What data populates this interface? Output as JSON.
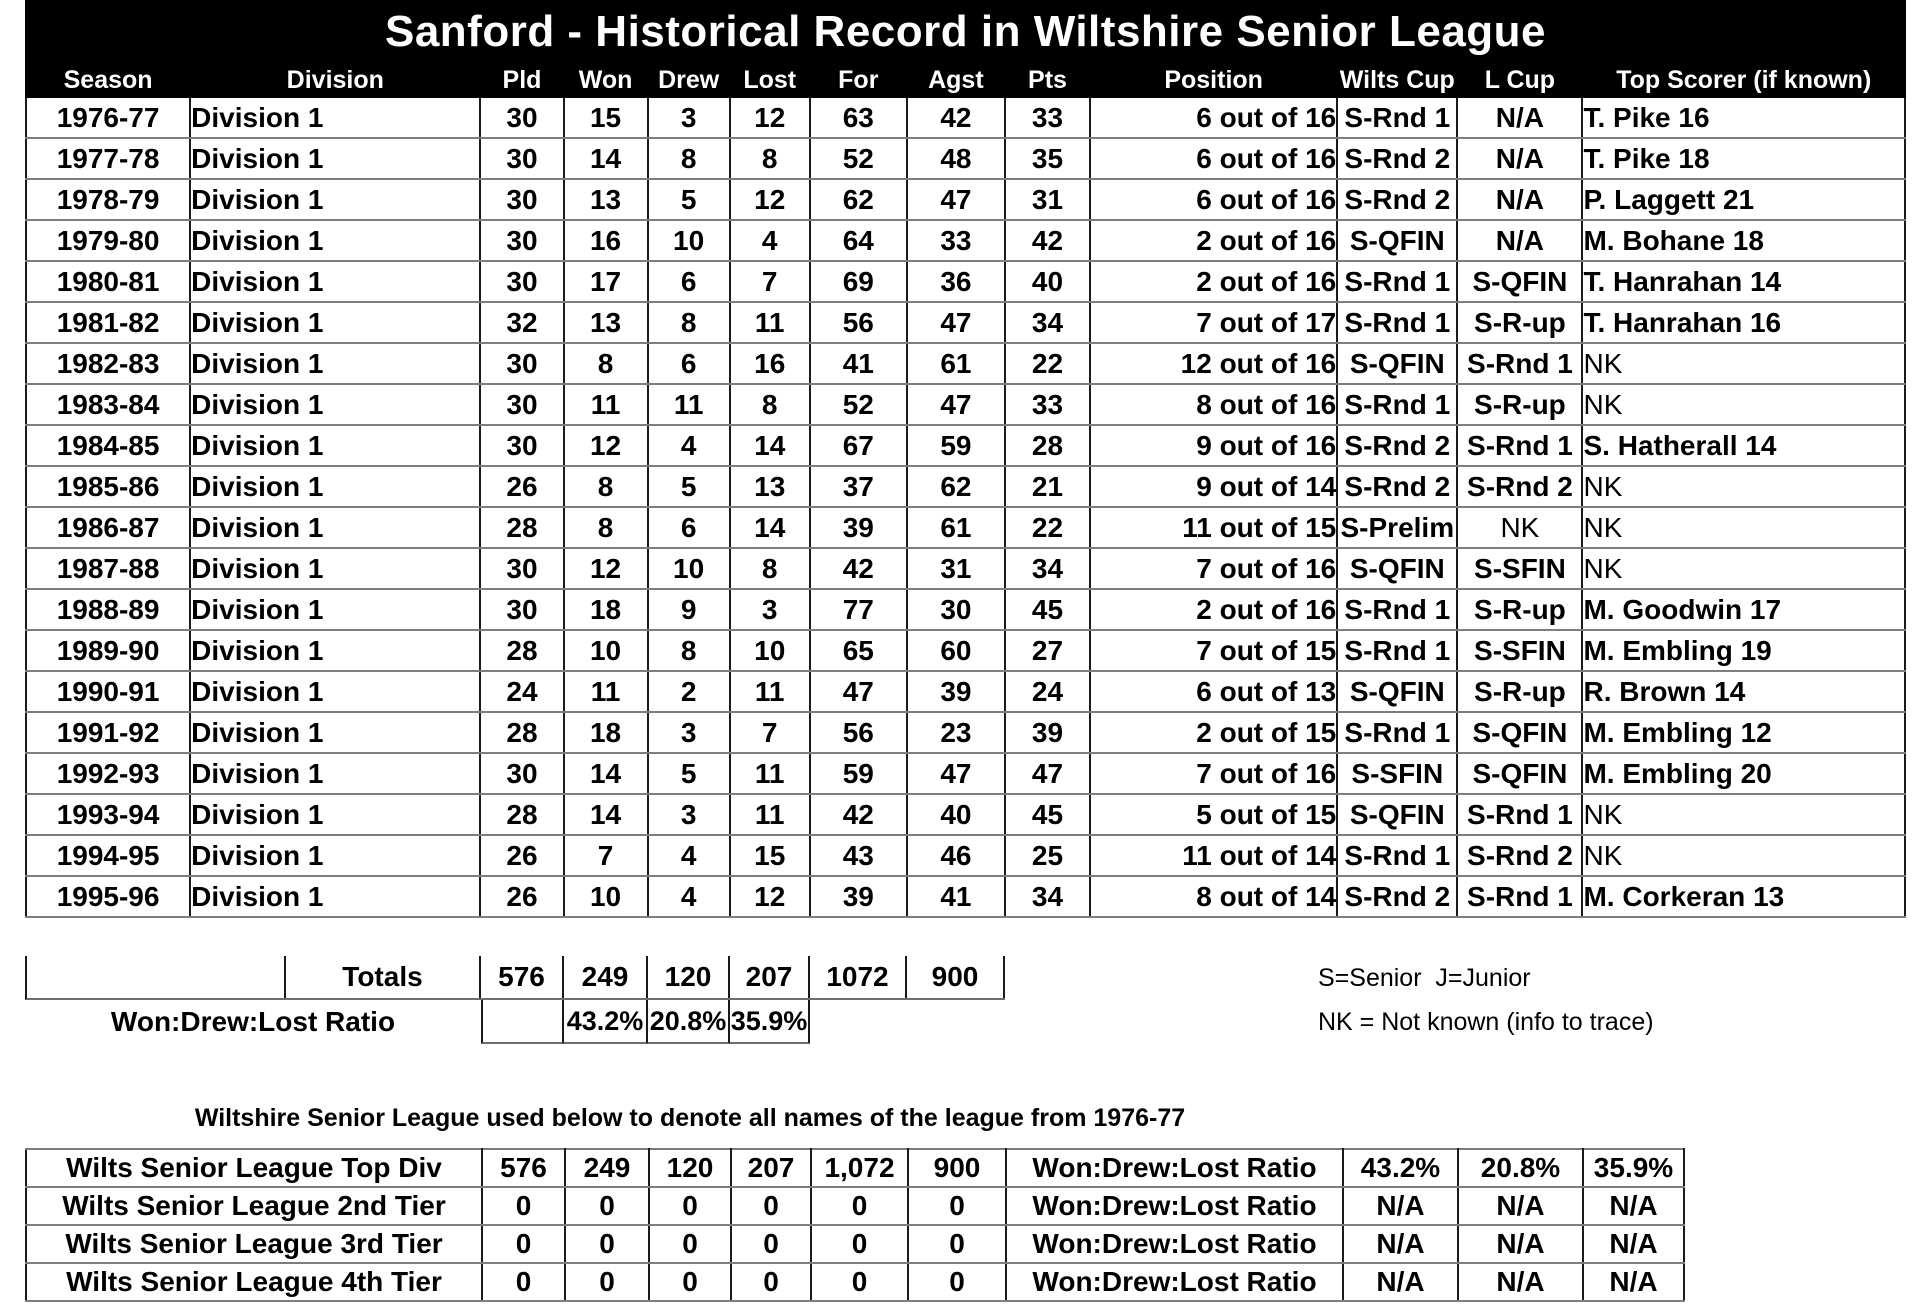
{
  "title": "Sanford - Historical Record in Wiltshire Senior League",
  "main_table": {
    "columns": [
      "Season",
      "Division",
      "Pld",
      "Won",
      "Drew",
      "Lost",
      "For",
      "Agst",
      "Pts",
      "Position",
      "Wilts Cup",
      "L Cup",
      "Top Scorer (if known)"
    ],
    "rows": [
      {
        "season": "1976-77",
        "division": "Division 1",
        "pld": "30",
        "won": "15",
        "drew": "3",
        "lost": "12",
        "for": "63",
        "agst": "42",
        "pts": "33",
        "position": "6 out of 16",
        "wilts_cup": "S-Rnd 1",
        "l_cup": "N/A",
        "top_scorer": "T. Pike 16",
        "l_cup_muted": false,
        "top_scorer_muted": false
      },
      {
        "season": "1977-78",
        "division": "Division 1",
        "pld": "30",
        "won": "14",
        "drew": "8",
        "lost": "8",
        "for": "52",
        "agst": "48",
        "pts": "35",
        "position": "6 out of 16",
        "wilts_cup": "S-Rnd 2",
        "l_cup": "N/A",
        "top_scorer": "T. Pike 18",
        "l_cup_muted": false,
        "top_scorer_muted": false
      },
      {
        "season": "1978-79",
        "division": "Division 1",
        "pld": "30",
        "won": "13",
        "drew": "5",
        "lost": "12",
        "for": "62",
        "agst": "47",
        "pts": "31",
        "position": "6 out of 16",
        "wilts_cup": "S-Rnd 2",
        "l_cup": "N/A",
        "top_scorer": "P. Laggett 21",
        "l_cup_muted": false,
        "top_scorer_muted": false
      },
      {
        "season": "1979-80",
        "division": "Division 1",
        "pld": "30",
        "won": "16",
        "drew": "10",
        "lost": "4",
        "for": "64",
        "agst": "33",
        "pts": "42",
        "position": "2 out of 16",
        "wilts_cup": "S-QFIN",
        "l_cup": "N/A",
        "top_scorer": "M. Bohane 18",
        "l_cup_muted": false,
        "top_scorer_muted": false
      },
      {
        "season": "1980-81",
        "division": "Division 1",
        "pld": "30",
        "won": "17",
        "drew": "6",
        "lost": "7",
        "for": "69",
        "agst": "36",
        "pts": "40",
        "position": "2 out of 16",
        "wilts_cup": "S-Rnd 1",
        "l_cup": "S-QFIN",
        "top_scorer": "T. Hanrahan 14",
        "l_cup_muted": false,
        "top_scorer_muted": false
      },
      {
        "season": "1981-82",
        "division": "Division 1",
        "pld": "32",
        "won": "13",
        "drew": "8",
        "lost": "11",
        "for": "56",
        "agst": "47",
        "pts": "34",
        "position": "7 out of 17",
        "wilts_cup": "S-Rnd 1",
        "l_cup": "S-R-up",
        "top_scorer": "T. Hanrahan 16",
        "l_cup_muted": false,
        "top_scorer_muted": false
      },
      {
        "season": "1982-83",
        "division": "Division 1",
        "pld": "30",
        "won": "8",
        "drew": "6",
        "lost": "16",
        "for": "41",
        "agst": "61",
        "pts": "22",
        "position": "12 out of 16",
        "wilts_cup": "S-QFIN",
        "l_cup": "S-Rnd 1",
        "top_scorer": "NK",
        "l_cup_muted": false,
        "top_scorer_muted": true
      },
      {
        "season": "1983-84",
        "division": "Division 1",
        "pld": "30",
        "won": "11",
        "drew": "11",
        "lost": "8",
        "for": "52",
        "agst": "47",
        "pts": "33",
        "position": "8 out of 16",
        "wilts_cup": "S-Rnd 1",
        "l_cup": "S-R-up",
        "top_scorer": "NK",
        "l_cup_muted": false,
        "top_scorer_muted": true
      },
      {
        "season": "1984-85",
        "division": "Division 1",
        "pld": "30",
        "won": "12",
        "drew": "4",
        "lost": "14",
        "for": "67",
        "agst": "59",
        "pts": "28",
        "position": "9 out of 16",
        "wilts_cup": "S-Rnd 2",
        "l_cup": "S-Rnd 1",
        "top_scorer": "S. Hatherall 14",
        "l_cup_muted": false,
        "top_scorer_muted": false
      },
      {
        "season": "1985-86",
        "division": "Division 1",
        "pld": "26",
        "won": "8",
        "drew": "5",
        "lost": "13",
        "for": "37",
        "agst": "62",
        "pts": "21",
        "position": "9 out of 14",
        "wilts_cup": "S-Rnd 2",
        "l_cup": "S-Rnd 2",
        "top_scorer": "NK",
        "l_cup_muted": false,
        "top_scorer_muted": true
      },
      {
        "season": "1986-87",
        "division": "Division 1",
        "pld": "28",
        "won": "8",
        "drew": "6",
        "lost": "14",
        "for": "39",
        "agst": "61",
        "pts": "22",
        "position": "11 out of 15",
        "wilts_cup": "S-Prelim",
        "l_cup": "NK",
        "top_scorer": "NK",
        "l_cup_muted": true,
        "top_scorer_muted": true
      },
      {
        "season": "1987-88",
        "division": "Division 1",
        "pld": "30",
        "won": "12",
        "drew": "10",
        "lost": "8",
        "for": "42",
        "agst": "31",
        "pts": "34",
        "position": "7 out of 16",
        "wilts_cup": "S-QFIN",
        "l_cup": "S-SFIN",
        "top_scorer": "NK",
        "l_cup_muted": false,
        "top_scorer_muted": true
      },
      {
        "season": "1988-89",
        "division": "Division 1",
        "pld": "30",
        "won": "18",
        "drew": "9",
        "lost": "3",
        "for": "77",
        "agst": "30",
        "pts": "45",
        "position": "2 out of 16",
        "wilts_cup": "S-Rnd 1",
        "l_cup": "S-R-up",
        "top_scorer": "M. Goodwin 17",
        "l_cup_muted": false,
        "top_scorer_muted": false
      },
      {
        "season": "1989-90",
        "division": "Division 1",
        "pld": "28",
        "won": "10",
        "drew": "8",
        "lost": "10",
        "for": "65",
        "agst": "60",
        "pts": "27",
        "position": "7 out of 15",
        "wilts_cup": "S-Rnd 1",
        "l_cup": "S-SFIN",
        "top_scorer": "M. Embling 19",
        "l_cup_muted": false,
        "top_scorer_muted": false
      },
      {
        "season": "1990-91",
        "division": "Division 1",
        "pld": "24",
        "won": "11",
        "drew": "2",
        "lost": "11",
        "for": "47",
        "agst": "39",
        "pts": "24",
        "position": "6 out of 13",
        "wilts_cup": "S-QFIN",
        "l_cup": "S-R-up",
        "top_scorer": "R. Brown 14",
        "l_cup_muted": false,
        "top_scorer_muted": false
      },
      {
        "season": "1991-92",
        "division": "Division 1",
        "pld": "28",
        "won": "18",
        "drew": "3",
        "lost": "7",
        "for": "56",
        "agst": "23",
        "pts": "39",
        "position": "2 out of 15",
        "wilts_cup": "S-Rnd 1",
        "l_cup": "S-QFIN",
        "top_scorer": "M. Embling 12",
        "l_cup_muted": false,
        "top_scorer_muted": false
      },
      {
        "season": "1992-93",
        "division": "Division 1",
        "pld": "30",
        "won": "14",
        "drew": "5",
        "lost": "11",
        "for": "59",
        "agst": "47",
        "pts": "47",
        "position": "7 out of 16",
        "wilts_cup": "S-SFIN",
        "l_cup": "S-QFIN",
        "top_scorer": "M. Embling 20",
        "l_cup_muted": false,
        "top_scorer_muted": false
      },
      {
        "season": "1993-94",
        "division": "Division 1",
        "pld": "28",
        "won": "14",
        "drew": "3",
        "lost": "11",
        "for": "42",
        "agst": "40",
        "pts": "45",
        "position": "5 out of 15",
        "wilts_cup": "S-QFIN",
        "l_cup": "S-Rnd 1",
        "top_scorer": "NK",
        "l_cup_muted": false,
        "top_scorer_muted": true
      },
      {
        "season": "1994-95",
        "division": "Division 1",
        "pld": "26",
        "won": "7",
        "drew": "4",
        "lost": "15",
        "for": "43",
        "agst": "46",
        "pts": "25",
        "position": "11 out of 14",
        "wilts_cup": "S-Rnd 1",
        "l_cup": "S-Rnd 2",
        "top_scorer": "NK",
        "l_cup_muted": false,
        "top_scorer_muted": true
      },
      {
        "season": "1995-96",
        "division": "Division 1",
        "pld": "26",
        "won": "10",
        "drew": "4",
        "lost": "12",
        "for": "39",
        "agst": "41",
        "pts": "34",
        "position": "8 out of 14",
        "wilts_cup": "S-Rnd 2",
        "l_cup": "S-Rnd 1",
        "top_scorer": "M. Corkeran 13",
        "l_cup_muted": false,
        "top_scorer_muted": false
      }
    ],
    "totals": {
      "label": "Totals",
      "pld": "576",
      "won": "249",
      "drew": "120",
      "lost": "207",
      "for": "1072",
      "agst": "900"
    },
    "ratio": {
      "label": "Won:Drew:Lost Ratio",
      "won": "43.2%",
      "drew": "20.8%",
      "lost": "35.9%"
    }
  },
  "notes": {
    "legend": "S=Senior  J=Junior",
    "nk": "NK = Not known (info to trace)"
  },
  "subtitle": "Wiltshire Senior League used below to denote all names of the league from 1976-77",
  "summary_table": {
    "rows": [
      {
        "label": "Wilts Senior League Top Div",
        "pld": "576",
        "won": "249",
        "drew": "120",
        "lost": "207",
        "for": "1,072",
        "agst": "900",
        "ratio_label": "Won:Drew:Lost Ratio",
        "won_pct": "43.2%",
        "drew_pct": "20.8%",
        "lost_pct": "35.9%"
      },
      {
        "label": "Wilts Senior League 2nd Tier",
        "pld": "0",
        "won": "0",
        "drew": "0",
        "lost": "0",
        "for": "0",
        "agst": "0",
        "ratio_label": "Won:Drew:Lost Ratio",
        "won_pct": "N/A",
        "drew_pct": "N/A",
        "lost_pct": "N/A"
      },
      {
        "label": "Wilts Senior League 3rd Tier",
        "pld": "0",
        "won": "0",
        "drew": "0",
        "lost": "0",
        "for": "0",
        "agst": "0",
        "ratio_label": "Won:Drew:Lost Ratio",
        "won_pct": "N/A",
        "drew_pct": "N/A",
        "lost_pct": "N/A"
      },
      {
        "label": "Wilts Senior League 4th Tier",
        "pld": "0",
        "won": "0",
        "drew": "0",
        "lost": "0",
        "for": "0",
        "agst": "0",
        "ratio_label": "Won:Drew:Lost Ratio",
        "won_pct": "N/A",
        "drew_pct": "N/A",
        "lost_pct": "N/A"
      }
    ]
  }
}
